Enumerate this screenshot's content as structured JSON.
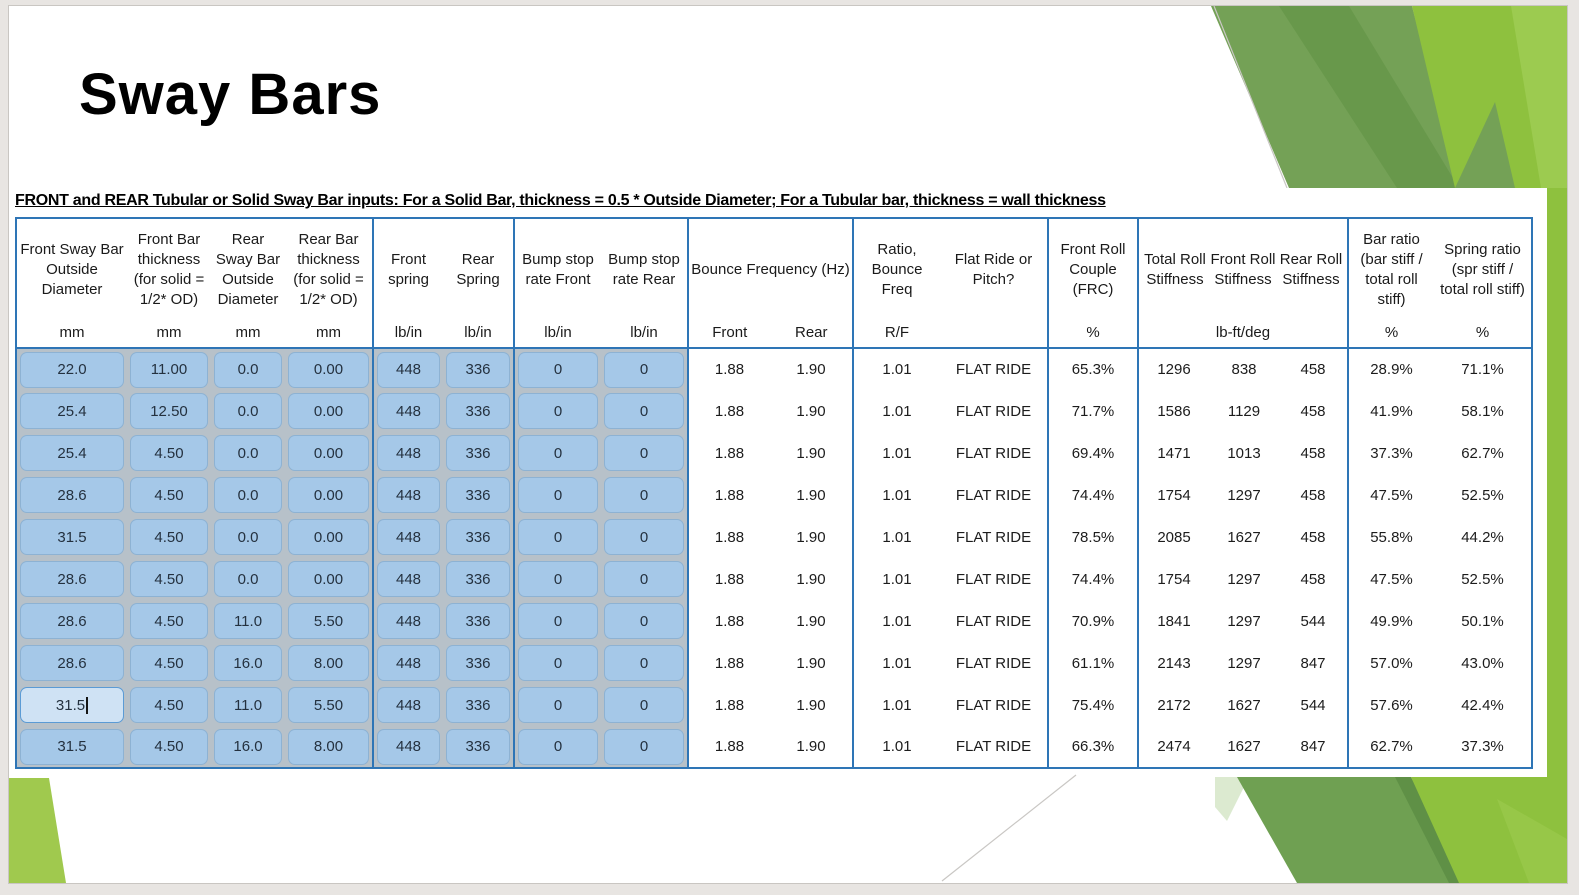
{
  "slide": {
    "title": "Sway Bars",
    "note": "FRONT and REAR Tubular or Solid Sway Bar inputs: For a Solid Bar, thickness = 0.5 * Outside Diameter; For a Tubular bar, thickness = wall thickness"
  },
  "table": {
    "headers": [
      {
        "label": "Front Sway Bar Outside Diameter",
        "unit": "mm"
      },
      {
        "label": "Front Bar thickness (for solid = 1/2* OD)",
        "unit": "mm"
      },
      {
        "label": "Rear Sway Bar Outside Diameter",
        "unit": "mm"
      },
      {
        "label": "Rear Bar thickness (for solid = 1/2* OD)",
        "unit": "mm"
      },
      {
        "label": "Front spring",
        "unit": "lb/in"
      },
      {
        "label": "Rear Spring",
        "unit": "lb/in"
      },
      {
        "label": "Bump stop rate Front",
        "unit": "lb/in"
      },
      {
        "label": "Bump stop rate Rear",
        "unit": "lb/in"
      },
      {
        "label": "Bounce Frequency (Hz)",
        "units": [
          "Front",
          "Rear"
        ],
        "span": 2
      },
      {
        "label": "Ratio, Bounce Freq",
        "unit": "R/F"
      },
      {
        "label": "Flat Ride or Pitch?",
        "unit": ""
      },
      {
        "label": "Front Roll Couple (FRC)",
        "unit": "%"
      },
      {
        "labels": [
          "Total Roll Stiffness",
          "Front Roll Stiffness",
          "Rear Roll Stiffness"
        ],
        "unit": "lb-ft/deg",
        "span": 3
      },
      {
        "label": "Bar ratio (bar stiff / total roll stiff)",
        "unit": "%"
      },
      {
        "label": "Spring ratio (spr stiff / total roll stiff)",
        "unit": "%"
      }
    ],
    "rows": [
      [
        "22.0",
        "11.00",
        "0.0",
        "0.00",
        "448",
        "336",
        "0",
        "0",
        "1.88",
        "1.90",
        "1.01",
        "FLAT RIDE",
        "65.3%",
        "1296",
        "838",
        "458",
        "28.9%",
        "71.1%"
      ],
      [
        "25.4",
        "12.50",
        "0.0",
        "0.00",
        "448",
        "336",
        "0",
        "0",
        "1.88",
        "1.90",
        "1.01",
        "FLAT RIDE",
        "71.7%",
        "1586",
        "1129",
        "458",
        "41.9%",
        "58.1%"
      ],
      [
        "25.4",
        "4.50",
        "0.0",
        "0.00",
        "448",
        "336",
        "0",
        "0",
        "1.88",
        "1.90",
        "1.01",
        "FLAT RIDE",
        "69.4%",
        "1471",
        "1013",
        "458",
        "37.3%",
        "62.7%"
      ],
      [
        "28.6",
        "4.50",
        "0.0",
        "0.00",
        "448",
        "336",
        "0",
        "0",
        "1.88",
        "1.90",
        "1.01",
        "FLAT RIDE",
        "74.4%",
        "1754",
        "1297",
        "458",
        "47.5%",
        "52.5%"
      ],
      [
        "31.5",
        "4.50",
        "0.0",
        "0.00",
        "448",
        "336",
        "0",
        "0",
        "1.88",
        "1.90",
        "1.01",
        "FLAT RIDE",
        "78.5%",
        "2085",
        "1627",
        "458",
        "55.8%",
        "44.2%"
      ],
      [
        "28.6",
        "4.50",
        "0.0",
        "0.00",
        "448",
        "336",
        "0",
        "0",
        "1.88",
        "1.90",
        "1.01",
        "FLAT RIDE",
        "74.4%",
        "1754",
        "1297",
        "458",
        "47.5%",
        "52.5%"
      ],
      [
        "28.6",
        "4.50",
        "11.0",
        "5.50",
        "448",
        "336",
        "0",
        "0",
        "1.88",
        "1.90",
        "1.01",
        "FLAT RIDE",
        "70.9%",
        "1841",
        "1297",
        "544",
        "49.9%",
        "50.1%"
      ],
      [
        "28.6",
        "4.50",
        "16.0",
        "8.00",
        "448",
        "336",
        "0",
        "0",
        "1.88",
        "1.90",
        "1.01",
        "FLAT RIDE",
        "61.1%",
        "2143",
        "1297",
        "847",
        "57.0%",
        "43.0%"
      ],
      [
        "31.5",
        "4.50",
        "11.0",
        "5.50",
        "448",
        "336",
        "0",
        "0",
        "1.88",
        "1.90",
        "1.01",
        "FLAT RIDE",
        "75.4%",
        "2172",
        "1627",
        "544",
        "57.6%",
        "42.4%"
      ],
      [
        "31.5",
        "4.50",
        "16.0",
        "8.00",
        "448",
        "336",
        "0",
        "0",
        "1.88",
        "1.90",
        "1.01",
        "FLAT RIDE",
        "66.3%",
        "2474",
        "1627",
        "847",
        "62.7%",
        "37.3%"
      ]
    ],
    "active_cell": {
      "row_index": 8,
      "col_index": 0
    },
    "colors": {
      "group_border_blue": "#2e75b6",
      "input_cell_fill": "#a5c8e8",
      "active_cell_fill": "#cfe2f4",
      "green_bright": "#8ec13e",
      "green_medium": "#74a156",
      "green_dark": "#68984b",
      "green_light": "#9ccb50",
      "green_pale": "#dcead0"
    }
  }
}
